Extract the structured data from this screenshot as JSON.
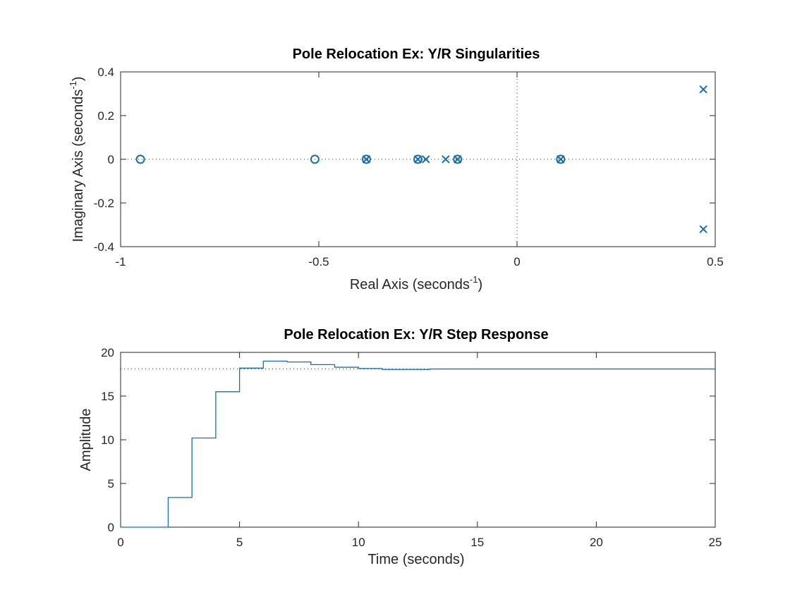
{
  "colors": {
    "series": "#1a6fa8",
    "axis": "#262626",
    "reference": "#333333",
    "background": "#ffffff"
  },
  "chart_data": [
    {
      "type": "scatter",
      "title": "Pole Relocation Ex: Y/R Singularities",
      "xlabel": "Real Axis (seconds",
      "xlabel_sup": "-1",
      "xlabel_tail": ")",
      "ylabel": "Imaginary Axis (seconds",
      "ylabel_sup": "-1",
      "ylabel_tail": ")",
      "xlim": [
        -1,
        0.5
      ],
      "ylim": [
        -0.4,
        0.4
      ],
      "xticks": [
        {
          "value": -1,
          "label": "-1"
        },
        {
          "value": -0.5,
          "label": "-0.5"
        },
        {
          "value": 0,
          "label": "0"
        },
        {
          "value": 0.5,
          "label": "0.5"
        }
      ],
      "yticks": [
        {
          "value": -0.4,
          "label": "-0.4"
        },
        {
          "value": -0.2,
          "label": "-0.2"
        },
        {
          "value": 0,
          "label": "0"
        },
        {
          "value": 0.2,
          "label": "0.2"
        },
        {
          "value": 0.4,
          "label": "0.4"
        }
      ],
      "reference_lines": {
        "x_zero": true,
        "y_zero": true,
        "style": "dotted"
      },
      "poles": [
        {
          "re": -0.38,
          "im": 0
        },
        {
          "re": -0.25,
          "im": 0
        },
        {
          "re": -0.23,
          "im": 0
        },
        {
          "re": -0.18,
          "im": 0
        },
        {
          "re": -0.15,
          "im": 0
        },
        {
          "re": 0.11,
          "im": 0
        },
        {
          "re": 0.47,
          "im": 0.32
        },
        {
          "re": 0.47,
          "im": -0.32
        }
      ],
      "zeros": [
        {
          "re": -0.95,
          "im": 0
        },
        {
          "re": -0.51,
          "im": 0
        },
        {
          "re": -0.38,
          "im": 0
        },
        {
          "re": -0.25,
          "im": 0
        },
        {
          "re": -0.15,
          "im": 0
        },
        {
          "re": 0.11,
          "im": 0
        }
      ]
    },
    {
      "type": "line",
      "style": "step",
      "title": "Pole Relocation Ex: Y/R Step Response",
      "xlabel": "Time (seconds)",
      "ylabel": "Amplitude",
      "xlim": [
        0,
        25
      ],
      "ylim": [
        0,
        20
      ],
      "xticks": [
        {
          "value": 0,
          "label": "0"
        },
        {
          "value": 5,
          "label": "5"
        },
        {
          "value": 10,
          "label": "10"
        },
        {
          "value": 15,
          "label": "15"
        },
        {
          "value": 20,
          "label": "20"
        },
        {
          "value": 25,
          "label": "25"
        }
      ],
      "yticks": [
        {
          "value": 0,
          "label": "0"
        },
        {
          "value": 5,
          "label": "5"
        },
        {
          "value": 10,
          "label": "10"
        },
        {
          "value": 15,
          "label": "15"
        },
        {
          "value": 20,
          "label": "20"
        }
      ],
      "steady_state": 18.1,
      "x": [
        0,
        1,
        2,
        3,
        4,
        5,
        6,
        7,
        8,
        9,
        10,
        11,
        12,
        13,
        14,
        15,
        16,
        17,
        18,
        19,
        20,
        21,
        22,
        23,
        24,
        25
      ],
      "y": [
        0,
        0,
        3.4,
        10.2,
        15.5,
        18.2,
        19.0,
        18.9,
        18.6,
        18.3,
        18.15,
        18.05,
        18.05,
        18.1,
        18.1,
        18.1,
        18.1,
        18.1,
        18.1,
        18.1,
        18.1,
        18.1,
        18.1,
        18.1,
        18.1,
        18.1
      ]
    }
  ]
}
